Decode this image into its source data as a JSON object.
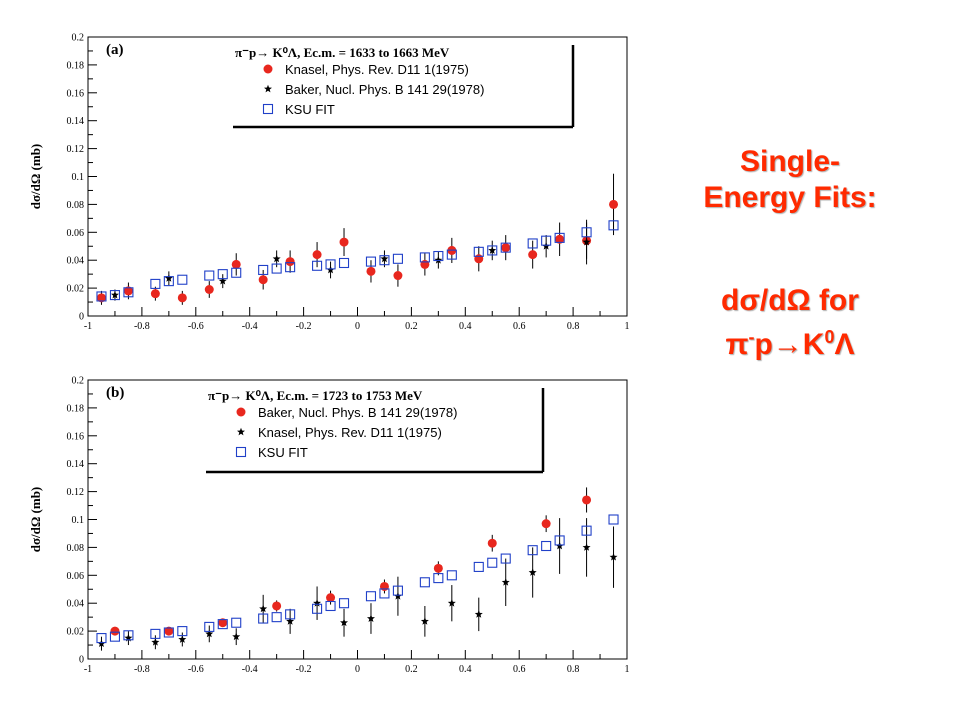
{
  "side_text": {
    "title_line1": "Single-",
    "title_line2": "Energy Fits:",
    "sub_line1": "dσ/dΩ for",
    "sub_line2_a": "π",
    "sub_line2_sup": "-",
    "sub_line2_b": "p→K",
    "sub_line2_sup2": "0",
    "sub_line2_c": "Λ"
  },
  "colors": {
    "accent": "#ff2a00",
    "marker_red": "#e8271e",
    "marker_fit": "#2040c8",
    "marker_star": "#000000"
  },
  "chart_data": [
    {
      "type": "scatter",
      "panel_label": "(a)",
      "title": "π⁻p→ K⁰Λ, Ec.m. = 1633 to 1663 MeV",
      "ylabel": "dσ/dΩ (mb)",
      "xlabel": "",
      "xlim": [
        -1,
        1
      ],
      "ylim": [
        0,
        0.2
      ],
      "x_ticks": [
        -1,
        -0.8,
        -0.6,
        -0.4,
        -0.2,
        0,
        0.2,
        0.4,
        0.6,
        0.8,
        1
      ],
      "x_tick_labels": [
        "-1",
        "-0.8",
        "-0.6",
        "-0.4",
        "-0.2",
        "0",
        "0.2",
        "0.4",
        "0.6",
        "0.8",
        "1"
      ],
      "y_ticks": [
        0,
        0.02,
        0.04,
        0.06,
        0.08,
        0.1,
        0.12,
        0.14,
        0.16,
        0.18,
        0.2
      ],
      "y_tick_labels": [
        "0",
        "0.02",
        "0.04",
        "0.06",
        "0.08",
        "0.1",
        "0.12",
        "0.14",
        "0.16",
        "0.18",
        "0.2"
      ],
      "legend_position": "top-right",
      "series": [
        {
          "name": "Knasel, Phys. Rev. D11 1(1975)",
          "marker": "circle",
          "x": [
            -0.95,
            -0.85,
            -0.75,
            -0.65,
            -0.55,
            -0.45,
            -0.35,
            -0.25,
            -0.15,
            -0.05,
            0.05,
            0.15,
            0.25,
            0.35,
            0.45,
            0.55,
            0.65,
            0.75,
            0.85,
            0.95
          ],
          "y": [
            0.013,
            0.018,
            0.016,
            0.013,
            0.019,
            0.037,
            0.026,
            0.039,
            0.044,
            0.053,
            0.032,
            0.029,
            0.037,
            0.047,
            0.041,
            0.049,
            0.044,
            0.055,
            0.054,
            0.08
          ],
          "err": [
            0.005,
            0.006,
            0.005,
            0.005,
            0.006,
            0.008,
            0.007,
            0.008,
            0.009,
            0.01,
            0.008,
            0.008,
            0.008,
            0.009,
            0.009,
            0.009,
            0.01,
            0.012,
            0.013,
            0.022
          ]
        },
        {
          "name": "Baker, Nucl. Phys. B 141 29(1978)",
          "marker": "star",
          "x": [
            -0.9,
            -0.7,
            -0.5,
            -0.3,
            -0.1,
            0.1,
            0.3,
            0.5,
            0.7,
            0.85
          ],
          "y": [
            0.015,
            0.027,
            0.025,
            0.041,
            0.033,
            0.041,
            0.04,
            0.047,
            0.05,
            0.053
          ],
          "err": [
            0.004,
            0.005,
            0.005,
            0.006,
            0.006,
            0.006,
            0.006,
            0.007,
            0.008,
            0.016
          ]
        },
        {
          "name": "KSU FIT",
          "marker": "square",
          "x": [
            -0.95,
            -0.9,
            -0.85,
            -0.75,
            -0.7,
            -0.65,
            -0.55,
            -0.5,
            -0.45,
            -0.35,
            -0.3,
            -0.25,
            -0.15,
            -0.1,
            -0.05,
            0.05,
            0.1,
            0.15,
            0.25,
            0.3,
            0.35,
            0.45,
            0.5,
            0.55,
            0.65,
            0.7,
            0.75,
            0.85,
            0.95
          ],
          "y": [
            0.014,
            0.015,
            0.017,
            0.023,
            0.025,
            0.026,
            0.029,
            0.03,
            0.031,
            0.033,
            0.034,
            0.035,
            0.036,
            0.037,
            0.038,
            0.039,
            0.04,
            0.041,
            0.042,
            0.043,
            0.044,
            0.046,
            0.047,
            0.049,
            0.052,
            0.054,
            0.056,
            0.06,
            0.065
          ]
        }
      ]
    },
    {
      "type": "scatter",
      "panel_label": "(b)",
      "title": "π⁻p→ K⁰Λ, Ec.m. = 1723 to 1753 MeV",
      "ylabel": "dσ/dΩ (mb)",
      "xlabel": "",
      "xlim": [
        -1,
        1
      ],
      "ylim": [
        0,
        0.2
      ],
      "x_ticks": [
        -1,
        -0.8,
        -0.6,
        -0.4,
        -0.2,
        0,
        0.2,
        0.4,
        0.6,
        0.8,
        1
      ],
      "x_tick_labels": [
        "-1",
        "-0.8",
        "-0.6",
        "-0.4",
        "-0.2",
        "0",
        "0.2",
        "0.4",
        "0.6",
        "0.8",
        "1"
      ],
      "y_ticks": [
        0,
        0.02,
        0.04,
        0.06,
        0.08,
        0.1,
        0.12,
        0.14,
        0.16,
        0.18,
        0.2
      ],
      "y_tick_labels": [
        "0",
        "0.02",
        "0.04",
        "0.06",
        "0.08",
        "0.1",
        "0.12",
        "0.14",
        "0.16",
        "0.18",
        "0.2"
      ],
      "legend_position": "top-right",
      "series": [
        {
          "name": "Baker, Nucl. Phys. B 141 29(1978)",
          "marker": "circle",
          "x": [
            -0.9,
            -0.7,
            -0.5,
            -0.3,
            -0.1,
            0.1,
            0.3,
            0.5,
            0.7,
            0.85
          ],
          "y": [
            0.02,
            0.02,
            0.026,
            0.038,
            0.044,
            0.052,
            0.065,
            0.083,
            0.097,
            0.114
          ],
          "err": [
            0.003,
            0.003,
            0.003,
            0.004,
            0.005,
            0.005,
            0.005,
            0.006,
            0.006,
            0.009
          ]
        },
        {
          "name": "Knasel, Phys. Rev. D11 1(1975)",
          "marker": "star",
          "x": [
            -0.95,
            -0.85,
            -0.75,
            -0.65,
            -0.55,
            -0.45,
            -0.35,
            -0.25,
            -0.15,
            -0.05,
            0.05,
            0.15,
            0.25,
            0.35,
            0.45,
            0.55,
            0.65,
            0.75,
            0.85,
            0.95
          ],
          "y": [
            0.011,
            0.015,
            0.012,
            0.014,
            0.018,
            0.016,
            0.036,
            0.027,
            0.04,
            0.026,
            0.029,
            0.045,
            0.027,
            0.04,
            0.032,
            0.055,
            0.062,
            0.081,
            0.08,
            0.073
          ],
          "err": [
            0.005,
            0.005,
            0.005,
            0.005,
            0.006,
            0.006,
            0.01,
            0.009,
            0.012,
            0.01,
            0.011,
            0.014,
            0.011,
            0.013,
            0.012,
            0.017,
            0.018,
            0.02,
            0.021,
            0.022
          ]
        },
        {
          "name": "KSU FIT",
          "marker": "square",
          "x": [
            -0.95,
            -0.9,
            -0.85,
            -0.75,
            -0.7,
            -0.65,
            -0.55,
            -0.5,
            -0.45,
            -0.35,
            -0.3,
            -0.25,
            -0.15,
            -0.1,
            -0.05,
            0.05,
            0.1,
            0.15,
            0.25,
            0.3,
            0.35,
            0.45,
            0.5,
            0.55,
            0.65,
            0.7,
            0.75,
            0.85,
            0.95
          ],
          "y": [
            0.015,
            0.016,
            0.017,
            0.018,
            0.019,
            0.02,
            0.023,
            0.025,
            0.026,
            0.029,
            0.03,
            0.032,
            0.036,
            0.038,
            0.04,
            0.045,
            0.047,
            0.049,
            0.055,
            0.058,
            0.06,
            0.066,
            0.069,
            0.072,
            0.078,
            0.081,
            0.085,
            0.092,
            0.1
          ]
        }
      ]
    }
  ]
}
